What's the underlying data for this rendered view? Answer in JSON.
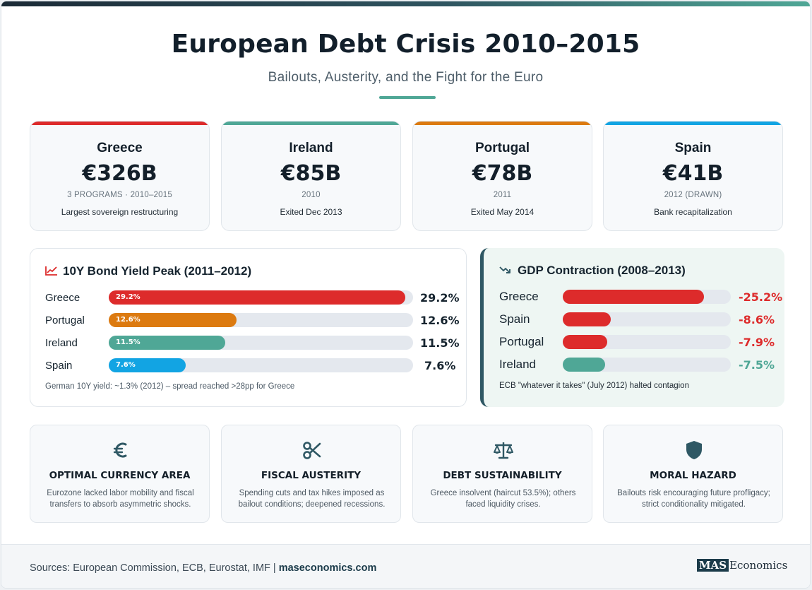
{
  "header": {
    "title": "European Debt Crisis 2010–2015",
    "subtitle": "Bailouts, Austerity, and the Fight for the Euro"
  },
  "colors": {
    "greece": "#dd2b2b",
    "ireland": "#4fa796",
    "portugal": "#dc7a10",
    "spain": "#12a4e3",
    "dark": "#2f5864"
  },
  "bailouts": [
    {
      "country": "Greece",
      "amount": "€326B",
      "meta": "3 PROGRAMS · 2010–2015",
      "note": "Largest sovereign restructuring",
      "color": "#dd2b2b"
    },
    {
      "country": "Ireland",
      "amount": "€85B",
      "meta": "2010",
      "note": "Exited Dec 2013",
      "color": "#4fa796"
    },
    {
      "country": "Portugal",
      "amount": "€78B",
      "meta": "2011",
      "note": "Exited May 2014",
      "color": "#dc7a10"
    },
    {
      "country": "Spain",
      "amount": "€41B",
      "meta": "2012 (DRAWN)",
      "note": "Bank recapitalization",
      "color": "#12a4e3"
    }
  ],
  "bond_panel": {
    "heading": "10Y Bond Yield Peak (2011–2012)",
    "icon": "trend-up-icon",
    "footnote": "German 10Y yield: ~1.3% (2012) – spread reached >28pp for Greece"
  },
  "gdp_panel": {
    "heading": "GDP Contraction (2008–2013)",
    "icon": "trend-down-icon",
    "footnote": "ECB \"whatever it takes\" (July 2012) halted contagion"
  },
  "chart_data": [
    {
      "type": "bar",
      "orientation": "horizontal",
      "title": "10Y Bond Yield Peak (2011–2012)",
      "categories": [
        "Greece",
        "Portugal",
        "Ireland",
        "Spain"
      ],
      "values": [
        29.2,
        12.6,
        11.5,
        7.6
      ],
      "value_labels": [
        "29.2%",
        "12.6%",
        "11.5%",
        "7.6%"
      ],
      "colors": [
        "#dd2b2b",
        "#dc7a10",
        "#4fa796",
        "#12a4e3"
      ],
      "xlim": [
        0,
        30
      ],
      "grid": false
    },
    {
      "type": "bar",
      "orientation": "horizontal",
      "title": "GDP Contraction (2008–2013)",
      "categories": [
        "Greece",
        "Spain",
        "Portugal",
        "Ireland"
      ],
      "values": [
        -25.2,
        -8.6,
        -7.9,
        -7.5
      ],
      "value_labels": [
        "-25.2%",
        "-8.6%",
        "-7.9%",
        "-7.5%"
      ],
      "colors": [
        "#dd2b2b",
        "#dd2b2b",
        "#dd2b2b",
        "#4fa796"
      ],
      "xlim": [
        0,
        30
      ],
      "grid": false
    }
  ],
  "concepts": [
    {
      "icon": "euro-icon",
      "title": "OPTIMAL CURRENCY AREA",
      "desc": "Eurozone lacked labor mobility and fiscal transfers to absorb asymmetric shocks."
    },
    {
      "icon": "scissors-icon",
      "title": "FISCAL AUSTERITY",
      "desc": "Spending cuts and tax hikes imposed as bailout conditions; deepened recessions."
    },
    {
      "icon": "scales-icon",
      "title": "DEBT SUSTAINABILITY",
      "desc": "Greece insolvent (haircut 53.5%); others faced liquidity crises."
    },
    {
      "icon": "shield-icon",
      "title": "MORAL HAZARD",
      "desc": "Bailouts risk encouraging future profligacy; strict conditionality mitigated."
    }
  ],
  "footer": {
    "sources_prefix": "Sources: European Commission, ECB, Eurostat, IMF |",
    "site": "maseconomics.com",
    "brand_mark": "MAS",
    "brand_rest": "Economics"
  }
}
